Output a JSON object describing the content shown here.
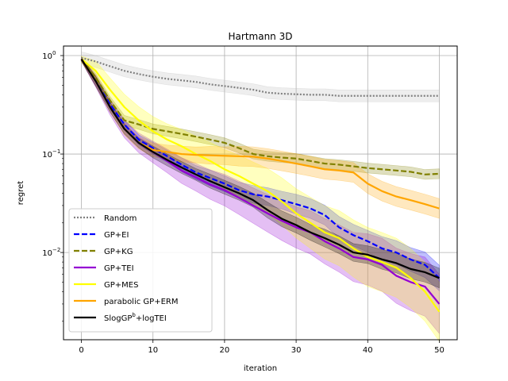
{
  "chart_data": {
    "type": "line",
    "title": "Hartmann 3D",
    "xlabel": "iteration",
    "ylabel": "regret",
    "xlim": [
      -2.5,
      52.5
    ],
    "ylim": [
      0.0013,
      1.25
    ],
    "yscale": "log",
    "grid": true,
    "legend_position": "lower-left",
    "x_ticks": [
      0,
      10,
      20,
      30,
      40,
      50
    ],
    "y_ticks": [
      0.01,
      0.1,
      1
    ],
    "y_tick_labels": [
      "10",
      "10",
      "10"
    ],
    "y_tick_exponents": [
      "−2",
      "−1",
      "0"
    ],
    "series": [
      {
        "name": "Random",
        "color": "#808080",
        "dash": "dotted",
        "x": [
          0,
          2,
          4,
          6,
          8,
          10,
          12,
          14,
          16,
          18,
          20,
          22,
          24,
          26,
          28,
          30,
          32,
          34,
          36,
          38,
          40,
          42,
          44,
          46,
          48,
          50
        ],
        "y": [
          0.95,
          0.87,
          0.78,
          0.7,
          0.65,
          0.61,
          0.58,
          0.56,
          0.54,
          0.51,
          0.49,
          0.47,
          0.45,
          0.42,
          0.41,
          0.405,
          0.4,
          0.4,
          0.39,
          0.39,
          0.39,
          0.39,
          0.39,
          0.39,
          0.39,
          0.39
        ],
        "band": [
          0.06,
          0.06,
          0.06,
          0.06,
          0.06,
          0.06,
          0.06,
          0.06,
          0.06,
          0.06,
          0.06,
          0.06,
          0.06,
          0.06,
          0.06,
          0.06,
          0.06,
          0.06,
          0.06,
          0.06,
          0.06,
          0.06,
          0.06,
          0.06,
          0.06,
          0.06
        ],
        "band_color": "#bbbbbb"
      },
      {
        "name": "GP+EI",
        "color": "#0000ff",
        "dash": "dashed",
        "x": [
          0,
          2,
          4,
          6,
          8,
          10,
          12,
          14,
          16,
          18,
          20,
          22,
          24,
          26,
          28,
          30,
          32,
          34,
          36,
          38,
          40,
          42,
          44,
          46,
          48,
          50
        ],
        "y": [
          0.92,
          0.55,
          0.32,
          0.2,
          0.14,
          0.115,
          0.095,
          0.078,
          0.065,
          0.057,
          0.05,
          0.043,
          0.039,
          0.037,
          0.034,
          0.031,
          0.028,
          0.024,
          0.018,
          0.015,
          0.013,
          0.011,
          0.01,
          0.0085,
          0.0075,
          0.0055
        ],
        "band": [
          0.02,
          0.05,
          0.05,
          0.05,
          0.05,
          0.06,
          0.06,
          0.07,
          0.07,
          0.08,
          0.08,
          0.08,
          0.09,
          0.09,
          0.09,
          0.1,
          0.1,
          0.1,
          0.11,
          0.11,
          0.11,
          0.12,
          0.12,
          0.12,
          0.13,
          0.13
        ],
        "band_color": "#0000ff"
      },
      {
        "name": "GP+KG",
        "color": "#808000",
        "dash": "dashed",
        "x": [
          0,
          2,
          4,
          6,
          8,
          10,
          12,
          14,
          16,
          18,
          20,
          22,
          24,
          26,
          28,
          30,
          32,
          34,
          36,
          38,
          40,
          42,
          44,
          46,
          48,
          50
        ],
        "y": [
          0.92,
          0.6,
          0.35,
          0.22,
          0.2,
          0.18,
          0.17,
          0.16,
          0.15,
          0.14,
          0.13,
          0.115,
          0.1,
          0.095,
          0.092,
          0.09,
          0.085,
          0.08,
          0.078,
          0.075,
          0.072,
          0.07,
          0.068,
          0.066,
          0.062,
          0.063
        ],
        "band": [
          0.02,
          0.04,
          0.04,
          0.05,
          0.05,
          0.05,
          0.05,
          0.05,
          0.05,
          0.05,
          0.05,
          0.05,
          0.05,
          0.05,
          0.05,
          0.05,
          0.05,
          0.05,
          0.05,
          0.05,
          0.05,
          0.05,
          0.05,
          0.05,
          0.05,
          0.05
        ],
        "band_color": "#808000"
      },
      {
        "name": "GP+TEI",
        "color": "#9400d3",
        "dash": "solid",
        "x": [
          0,
          2,
          4,
          6,
          8,
          10,
          12,
          14,
          16,
          18,
          20,
          22,
          24,
          26,
          28,
          30,
          32,
          34,
          36,
          38,
          40,
          42,
          44,
          46,
          48,
          50
        ],
        "y": [
          0.92,
          0.55,
          0.3,
          0.18,
          0.13,
          0.105,
          0.085,
          0.068,
          0.058,
          0.049,
          0.043,
          0.036,
          0.03,
          0.025,
          0.021,
          0.018,
          0.016,
          0.013,
          0.011,
          0.009,
          0.0085,
          0.0075,
          0.0058,
          0.005,
          0.0045,
          0.003
        ],
        "band": [
          0.02,
          0.06,
          0.08,
          0.09,
          0.1,
          0.11,
          0.12,
          0.13,
          0.14,
          0.15,
          0.16,
          0.17,
          0.18,
          0.19,
          0.2,
          0.21,
          0.22,
          0.23,
          0.24,
          0.25,
          0.26,
          0.27,
          0.28,
          0.29,
          0.3,
          0.3
        ],
        "band_color": "#9400d3"
      },
      {
        "name": "GP+MES",
        "color": "#ffff00",
        "dash": "solid",
        "x": [
          0,
          2,
          4,
          6,
          8,
          10,
          12,
          14,
          16,
          18,
          20,
          22,
          24,
          26,
          28,
          30,
          32,
          34,
          36,
          38,
          40,
          42,
          44,
          46,
          48,
          50
        ],
        "y": [
          0.92,
          0.7,
          0.45,
          0.3,
          0.22,
          0.17,
          0.14,
          0.12,
          0.1,
          0.085,
          0.07,
          0.06,
          0.05,
          0.042,
          0.033,
          0.025,
          0.02,
          0.016,
          0.014,
          0.011,
          0.009,
          0.008,
          0.007,
          0.0055,
          0.004,
          0.0025
        ],
        "band": [
          0.03,
          0.1,
          0.12,
          0.13,
          0.14,
          0.15,
          0.16,
          0.17,
          0.18,
          0.19,
          0.2,
          0.21,
          0.22,
          0.23,
          0.24,
          0.25,
          0.26,
          0.27,
          0.28,
          0.29,
          0.3,
          0.3,
          0.3,
          0.3,
          0.3,
          0.3
        ],
        "band_color": "#ffff00"
      },
      {
        "name": "parabolic GP+ERM",
        "color": "#ffa500",
        "dash": "solid",
        "x": [
          0,
          2,
          4,
          6,
          8,
          10,
          12,
          14,
          16,
          18,
          20,
          22,
          24,
          26,
          28,
          30,
          32,
          34,
          36,
          38,
          40,
          42,
          44,
          46,
          48,
          50
        ],
        "y": [
          0.92,
          0.55,
          0.3,
          0.18,
          0.13,
          0.11,
          0.105,
          0.1,
          0.098,
          0.097,
          0.096,
          0.095,
          0.094,
          0.09,
          0.085,
          0.08,
          0.075,
          0.07,
          0.068,
          0.065,
          0.05,
          0.042,
          0.037,
          0.034,
          0.031,
          0.028
        ],
        "band": [
          0.02,
          0.05,
          0.05,
          0.06,
          0.06,
          0.07,
          0.07,
          0.08,
          0.08,
          0.09,
          0.09,
          0.1,
          0.1,
          0.1,
          0.1,
          0.1,
          0.1,
          0.1,
          0.1,
          0.1,
          0.1,
          0.1,
          0.1,
          0.1,
          0.1,
          0.1
        ],
        "band_color": "#ffa500"
      },
      {
        "name": "SlogGP^b+logTEI",
        "color": "#000000",
        "dash": "solid",
        "x": [
          0,
          2,
          4,
          6,
          8,
          10,
          12,
          14,
          16,
          18,
          20,
          22,
          24,
          26,
          28,
          30,
          32,
          34,
          36,
          38,
          40,
          42,
          44,
          46,
          48,
          50
        ],
        "y": [
          0.92,
          0.55,
          0.3,
          0.18,
          0.13,
          0.105,
          0.087,
          0.073,
          0.062,
          0.053,
          0.046,
          0.04,
          0.034,
          0.027,
          0.022,
          0.019,
          0.016,
          0.014,
          0.012,
          0.01,
          0.0095,
          0.0085,
          0.0078,
          0.0068,
          0.0063,
          0.0055
        ],
        "band": [
          0.02,
          0.05,
          0.05,
          0.05,
          0.05,
          0.06,
          0.06,
          0.06,
          0.06,
          0.07,
          0.07,
          0.07,
          0.07,
          0.08,
          0.08,
          0.08,
          0.08,
          0.09,
          0.09,
          0.09,
          0.09,
          0.1,
          0.1,
          0.1,
          0.1,
          0.1
        ],
        "band_color": "#000000"
      }
    ]
  }
}
